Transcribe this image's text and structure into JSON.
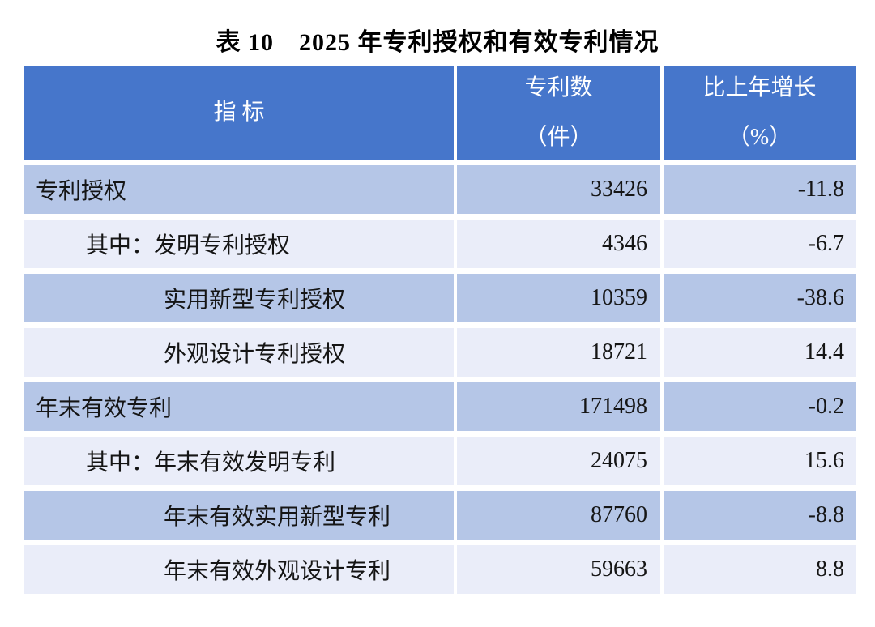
{
  "title": "表 10　2025 年专利授权和有效专利情况",
  "table": {
    "header": {
      "col1": "指 标",
      "col2_line1": "专利数",
      "col2_line2": "（件）",
      "col3_line1": "比上年增长",
      "col3_line2": "（%）"
    },
    "rows": [
      {
        "indicator": "专利授权",
        "count": "33426",
        "growth": "-11.8"
      },
      {
        "indicator": "其中：发明专利授权",
        "count": "4346",
        "growth": "-6.7"
      },
      {
        "indicator": "实用新型专利授权",
        "count": "10359",
        "growth": "-38.6"
      },
      {
        "indicator": "外观设计专利授权",
        "count": "18721",
        "growth": "14.4"
      },
      {
        "indicator": "年末有效专利",
        "count": "171498",
        "growth": "-0.2"
      },
      {
        "indicator": "其中：年末有效发明专利",
        "count": "24075",
        "growth": "15.6"
      },
      {
        "indicator": "年末有效实用新型专利",
        "count": "87760",
        "growth": "-8.8"
      },
      {
        "indicator": "年末有效外观设计专利",
        "count": "59663",
        "growth": "8.8"
      }
    ],
    "colors": {
      "header_bg": "#4676CB",
      "header_text": "#FFFFFF",
      "row_dark_bg": "#B5C6E7",
      "row_light_bg": "#EAEDF9",
      "body_text": "#151515",
      "page_bg": "#FFFFFF"
    }
  },
  "chart_data": {
    "type": "table",
    "title": "表 10　2025 年专利授权和有效专利情况",
    "columns": [
      "指 标",
      "专利数（件）",
      "比上年增长（%）"
    ],
    "rows": [
      [
        "专利授权",
        33426,
        -11.8
      ],
      [
        "其中：发明专利授权",
        4346,
        -6.7
      ],
      [
        "实用新型专利授权",
        10359,
        -38.6
      ],
      [
        "外观设计专利授权",
        18721,
        14.4
      ],
      [
        "年末有效专利",
        171498,
        -0.2
      ],
      [
        "其中：年末有效发明专利",
        24075,
        15.6
      ],
      [
        "年末有效实用新型专利",
        87760,
        -8.8
      ],
      [
        "年末有效外观设计专利",
        59663,
        8.8
      ]
    ]
  }
}
